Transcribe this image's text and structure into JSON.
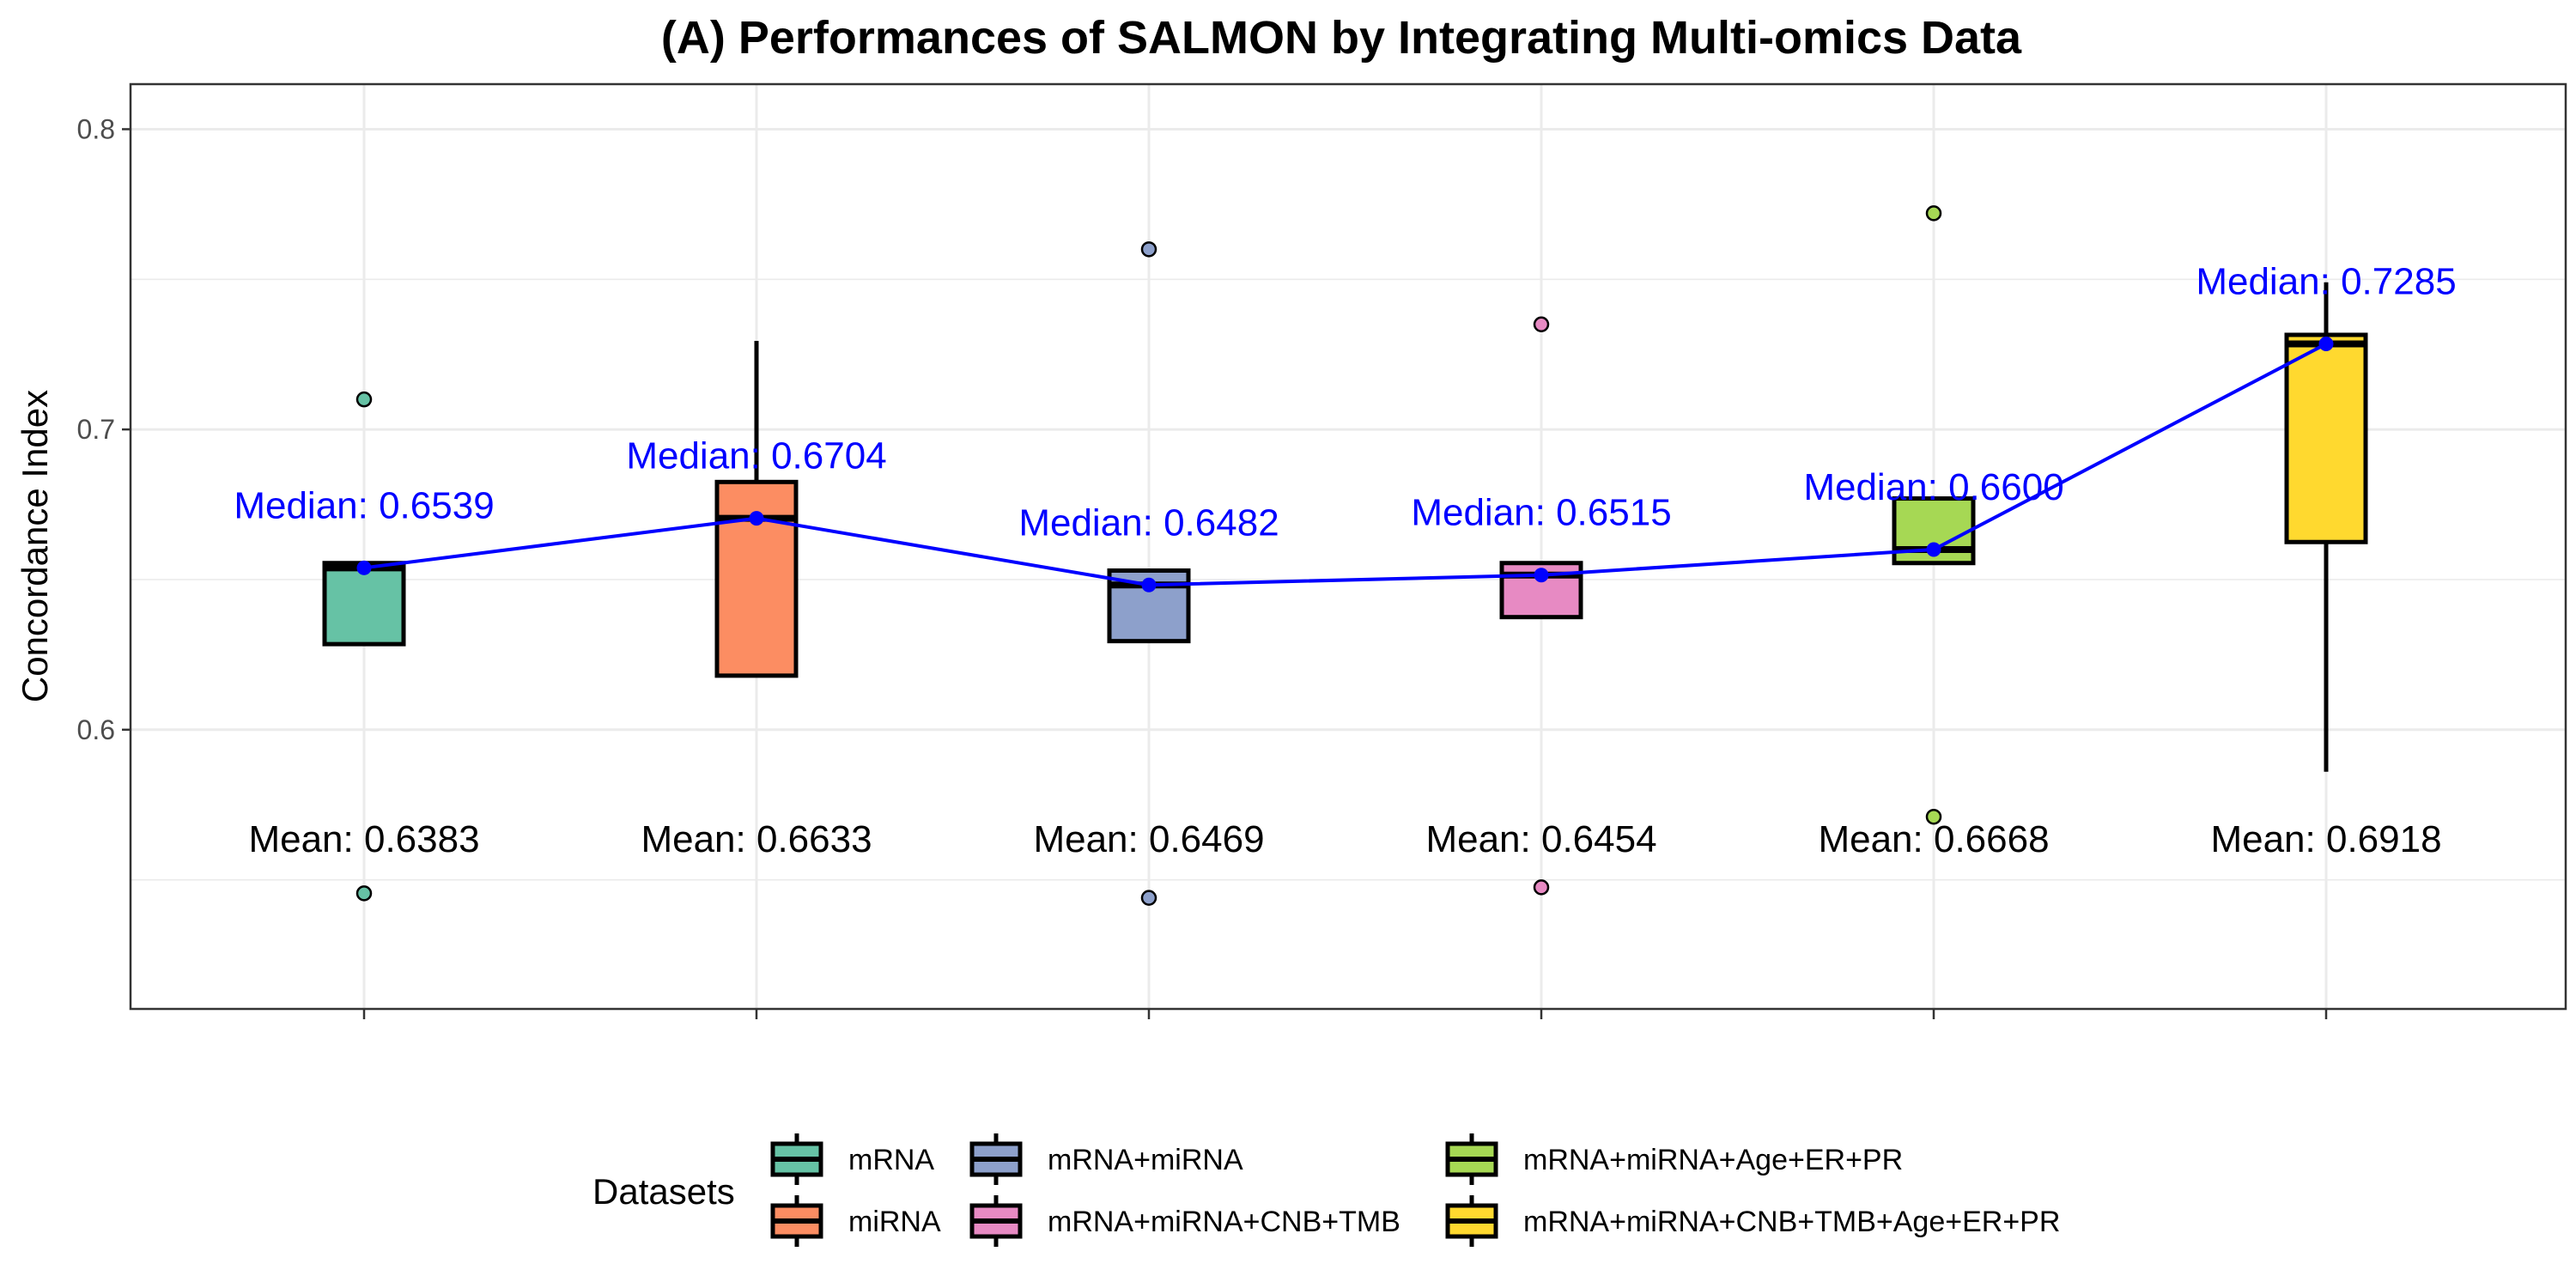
{
  "chart_data": {
    "type": "box",
    "title": "(A) Performances of SALMON by Integrating Multi-omics Data",
    "ylabel": "Concordance Index",
    "xlabel": "",
    "ylim": [
      0.507,
      0.815
    ],
    "yticks": [
      0.6,
      0.7,
      0.8
    ],
    "ytick_labels": [
      "0.6",
      "0.7",
      "0.8"
    ],
    "grid": true,
    "legend_title": "Datasets",
    "legend_position": "bottom",
    "median_line_color": "#0000ff",
    "groups": [
      {
        "name": "mRNA",
        "color": "#66c2a5",
        "q1": 0.6285,
        "median": 0.6539,
        "q3": 0.6555,
        "whisker_low": 0.6285,
        "whisker_high": 0.6555,
        "outliers": [
          0.71,
          0.5455
        ],
        "mean": 0.6383,
        "median_label": "Median: 0.6539",
        "mean_label": "Mean: 0.6383"
      },
      {
        "name": "miRNA",
        "color": "#fc8d62",
        "q1": 0.618,
        "median": 0.6704,
        "q3": 0.6825,
        "whisker_low": 0.618,
        "whisker_high": 0.7295,
        "outliers": [],
        "mean": 0.6633,
        "median_label": "Median: 0.6704",
        "mean_label": "Mean: 0.6633"
      },
      {
        "name": "mRNA+miRNA",
        "color": "#8da0cb",
        "q1": 0.6295,
        "median": 0.6482,
        "q3": 0.653,
        "whisker_low": 0.6295,
        "whisker_high": 0.653,
        "outliers": [
          0.76,
          0.544
        ],
        "mean": 0.6469,
        "median_label": "Median: 0.6482",
        "mean_label": "Mean: 0.6469"
      },
      {
        "name": "mRNA+miRNA+CNB+TMB",
        "color": "#e78ac3",
        "q1": 0.6375,
        "median": 0.6515,
        "q3": 0.6555,
        "whisker_low": 0.6375,
        "whisker_high": 0.6555,
        "outliers": [
          0.735,
          0.5475
        ],
        "mean": 0.6454,
        "median_label": "Median: 0.6515",
        "mean_label": "Mean: 0.6454"
      },
      {
        "name": "mRNA+miRNA+Age+ER+PR",
        "color": "#a6d854",
        "q1": 0.6555,
        "median": 0.66,
        "q3": 0.677,
        "whisker_low": 0.6555,
        "whisker_high": 0.677,
        "outliers": [
          0.772,
          0.571
        ],
        "mean": 0.6668,
        "median_label": "Median: 0.6600",
        "mean_label": "Mean: 0.6668"
      },
      {
        "name": "mRNA+miRNA+CNB+TMB+Age+ER+PR",
        "color": "#ffd92f",
        "q1": 0.6625,
        "median": 0.7285,
        "q3": 0.7315,
        "whisker_low": 0.586,
        "whisker_high": 0.749,
        "outliers": [],
        "mean": 0.6918,
        "median_label": "Median: 0.7285",
        "mean_label": "Mean: 0.6918"
      }
    ]
  }
}
